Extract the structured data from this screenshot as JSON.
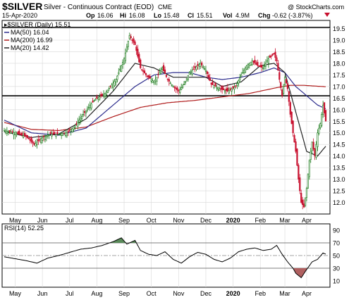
{
  "header": {
    "symbol": "$SILVER",
    "description": "Silver - Continuous Contract (EOD)",
    "exchange": "CME",
    "watermark": "@ StockCharts.com",
    "date": "15-Apr-2020",
    "open_label": "Op",
    "open": "16.06",
    "high_label": "Hi",
    "high": "16.08",
    "low_label": "Lo",
    "low": "15.48",
    "close_label": "Cl",
    "close": "15.51",
    "vol_label": "Vol",
    "vol": "4.9M",
    "chg_label": "Chg",
    "chg": "-0.62 (-3.87%)"
  },
  "legend": {
    "price": "▸$SILVER (Daily) 15.51",
    "ma50": "MA(50) 16.04",
    "ma200": "MA(200) 16.99",
    "ma20": "MA(20) 14.42"
  },
  "rsi_label": "RSI(14) 52.25",
  "colors": {
    "up": "#1a7a1a",
    "down": "#c8102e",
    "ma50": "#2b2b8c",
    "ma200": "#b01c1c",
    "ma20": "#222222",
    "rsi_fill_high": "#5a8a5a",
    "rsi_fill_low": "#b06060",
    "grid": "#d8d8d8"
  },
  "chart_data": [
    {
      "type": "candlestick",
      "xlabel": "",
      "ylabel": "",
      "y_ticks": [
        12.0,
        12.5,
        13.0,
        13.5,
        14.0,
        14.5,
        15.0,
        15.5,
        16.0,
        16.5,
        17.0,
        17.5,
        18.0,
        18.5,
        19.0,
        19.5
      ],
      "ylim": [
        11.5,
        19.85
      ],
      "x_ticks": [
        "May",
        "Jun",
        "Jul",
        "Aug",
        "Sep",
        "Oct",
        "Nov",
        "Dec",
        "2020",
        "Feb",
        "Mar",
        "Apr"
      ],
      "horizontal_lines": [
        19.55,
        16.6
      ],
      "price_path": [
        [
          0,
          15.1
        ],
        [
          8,
          15.0
        ],
        [
          16,
          14.85
        ],
        [
          22,
          14.5
        ],
        [
          28,
          14.8
        ],
        [
          34,
          14.95
        ],
        [
          40,
          14.95
        ],
        [
          46,
          15.0
        ],
        [
          52,
          15.3
        ],
        [
          58,
          15.8
        ],
        [
          66,
          16.4
        ],
        [
          74,
          16.7
        ],
        [
          82,
          17.3
        ],
        [
          88,
          18.2
        ],
        [
          92,
          19.2
        ],
        [
          96,
          18.8
        ],
        [
          100,
          17.8
        ],
        [
          104,
          17.5
        ],
        [
          110,
          17.2
        ],
        [
          116,
          17.8
        ],
        [
          120,
          17.3
        ],
        [
          124,
          17.0
        ],
        [
          128,
          16.8
        ],
        [
          132,
          17.1
        ],
        [
          136,
          17.6
        ],
        [
          140,
          17.8
        ],
        [
          144,
          18.0
        ],
        [
          148,
          17.7
        ],
        [
          152,
          17.1
        ],
        [
          158,
          16.9
        ],
        [
          164,
          16.8
        ],
        [
          170,
          17.0
        ],
        [
          174,
          17.5
        ],
        [
          178,
          17.9
        ],
        [
          182,
          18.1
        ],
        [
          186,
          17.9
        ],
        [
          190,
          17.8
        ],
        [
          194,
          18.2
        ],
        [
          198,
          18.4
        ],
        [
          200,
          18.1
        ],
        [
          202,
          17.3
        ],
        [
          204,
          16.6
        ],
        [
          206,
          17.4
        ],
        [
          208,
          16.9
        ],
        [
          210,
          15.8
        ],
        [
          212,
          15.0
        ],
        [
          214,
          14.2
        ],
        [
          216,
          13.0
        ],
        [
          218,
          12.0
        ],
        [
          220,
          11.8
        ],
        [
          222,
          12.6
        ],
        [
          224,
          13.8
        ],
        [
          226,
          14.6
        ],
        [
          228,
          14.0
        ],
        [
          230,
          15.0
        ],
        [
          232,
          15.4
        ],
        [
          234,
          16.2
        ],
        [
          236,
          15.51
        ]
      ],
      "ma20_path": [
        [
          0,
          15.05
        ],
        [
          20,
          14.8
        ],
        [
          40,
          14.95
        ],
        [
          60,
          15.6
        ],
        [
          80,
          16.8
        ],
        [
          96,
          18.0
        ],
        [
          110,
          17.8
        ],
        [
          124,
          17.4
        ],
        [
          136,
          17.4
        ],
        [
          148,
          17.4
        ],
        [
          160,
          17.0
        ],
        [
          174,
          17.2
        ],
        [
          188,
          17.9
        ],
        [
          198,
          18.0
        ],
        [
          206,
          17.6
        ],
        [
          214,
          15.9
        ],
        [
          222,
          14.2
        ],
        [
          230,
          14.0
        ],
        [
          236,
          14.42
        ]
      ],
      "series": [
        {
          "name": "MA(50)",
          "values": [
            [
              0,
              15.55
            ],
            [
              20,
              15.0
            ],
            [
              40,
              14.9
            ],
            [
              60,
              15.2
            ],
            [
              80,
              16.2
            ],
            [
              96,
              17.0
            ],
            [
              110,
              17.5
            ],
            [
              124,
              17.6
            ],
            [
              136,
              17.6
            ],
            [
              148,
              17.4
            ],
            [
              160,
              17.3
            ],
            [
              174,
              17.4
            ],
            [
              188,
              17.6
            ],
            [
              198,
              17.8
            ],
            [
              206,
              17.6
            ],
            [
              214,
              17.0
            ],
            [
              222,
              16.6
            ],
            [
              230,
              16.2
            ],
            [
              236,
              16.04
            ]
          ]
        },
        {
          "name": "MA(200)",
          "values": [
            [
              0,
              15.45
            ],
            [
              20,
              15.15
            ],
            [
              40,
              15.1
            ],
            [
              60,
              15.25
            ],
            [
              80,
              15.7
            ],
            [
              100,
              16.1
            ],
            [
              120,
              16.3
            ],
            [
              140,
              16.4
            ],
            [
              160,
              16.55
            ],
            [
              180,
              16.7
            ],
            [
              200,
              16.95
            ],
            [
              210,
              17.05
            ],
            [
              220,
              17.05
            ],
            [
              236,
              16.99
            ]
          ]
        },
        {
          "name": "MA(20)",
          "values": [
            [
              0,
              15.05
            ],
            [
              20,
              14.8
            ],
            [
              40,
              14.95
            ],
            [
              60,
              15.6
            ],
            [
              80,
              16.8
            ],
            [
              96,
              18.0
            ],
            [
              110,
              17.8
            ],
            [
              124,
              17.4
            ],
            [
              136,
              17.4
            ],
            [
              148,
              17.4
            ],
            [
              160,
              17.0
            ],
            [
              174,
              17.2
            ],
            [
              188,
              17.9
            ],
            [
              198,
              18.0
            ],
            [
              206,
              17.6
            ],
            [
              214,
              15.9
            ],
            [
              222,
              14.2
            ],
            [
              230,
              14.0
            ],
            [
              236,
              14.42
            ]
          ]
        }
      ]
    },
    {
      "type": "line",
      "xlabel": "",
      "ylabel": "",
      "ylim": [
        0,
        100
      ],
      "y_ticks": [
        10,
        30,
        50,
        70,
        90
      ],
      "x_ticks": [
        "May",
        "Jun",
        "Jul",
        "Aug",
        "Sep",
        "Oct",
        "Nov",
        "Dec",
        "2020",
        "Feb",
        "Mar",
        "Apr"
      ],
      "reference_lines": [
        70,
        50,
        30
      ],
      "series": [
        {
          "name": "RSI(14)",
          "values": [
            [
              0,
              48
            ],
            [
              8,
              45
            ],
            [
              16,
              42
            ],
            [
              24,
              38
            ],
            [
              32,
              46
            ],
            [
              40,
              50
            ],
            [
              48,
              55
            ],
            [
              56,
              60
            ],
            [
              64,
              62
            ],
            [
              72,
              66
            ],
            [
              80,
              72
            ],
            [
              86,
              78
            ],
            [
              90,
              68
            ],
            [
              96,
              74
            ],
            [
              100,
              58
            ],
            [
              106,
              52
            ],
            [
              112,
              50
            ],
            [
              118,
              56
            ],
            [
              124,
              44
            ],
            [
              130,
              38
            ],
            [
              136,
              48
            ],
            [
              142,
              55
            ],
            [
              148,
              52
            ],
            [
              154,
              44
            ],
            [
              160,
              40
            ],
            [
              166,
              46
            ],
            [
              172,
              56
            ],
            [
              178,
              60
            ],
            [
              184,
              62
            ],
            [
              190,
              58
            ],
            [
              196,
              60
            ],
            [
              200,
              66
            ],
            [
              204,
              52
            ],
            [
              208,
              40
            ],
            [
              212,
              30
            ],
            [
              214,
              22
            ],
            [
              218,
              15
            ],
            [
              222,
              28
            ],
            [
              226,
              40
            ],
            [
              230,
              44
            ],
            [
              234,
              54
            ],
            [
              236,
              52.25
            ]
          ]
        }
      ]
    }
  ]
}
